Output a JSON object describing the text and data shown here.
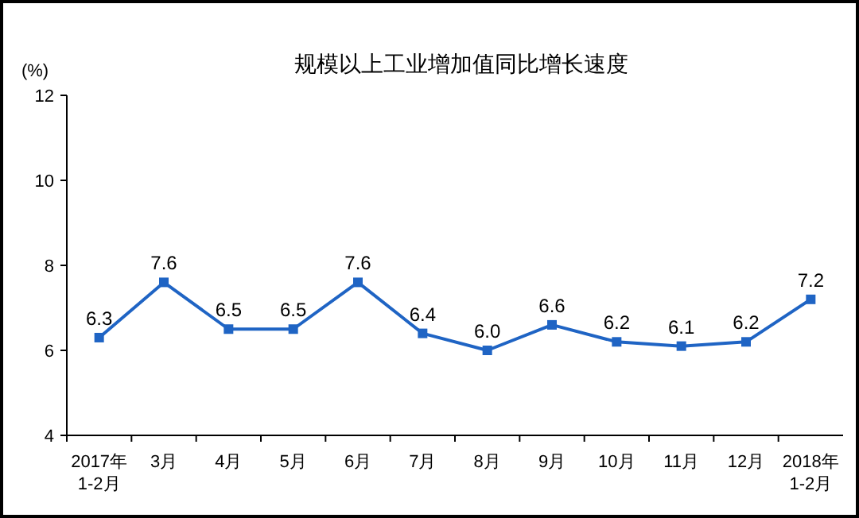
{
  "chart_data": {
    "type": "line",
    "title": "规模以上工业增加值同比增长速度",
    "ylabel": "(%)",
    "categories": [
      "2017年\n1-2月",
      "3月",
      "4月",
      "5月",
      "6月",
      "7月",
      "8月",
      "9月",
      "10月",
      "11月",
      "12月",
      "2018年\n1-2月"
    ],
    "series": [
      {
        "color": "#1f64c4",
        "values": [
          6.3,
          7.6,
          6.5,
          6.5,
          7.6,
          6.4,
          6.0,
          6.6,
          6.2,
          6.1,
          6.2,
          7.2
        ],
        "value_labels": [
          "6.3",
          "7.6",
          "6.5",
          "6.5",
          "7.6",
          "6.4",
          "6.0",
          "6.6",
          "6.2",
          "6.1",
          "6.2",
          "7.2"
        ]
      }
    ],
    "ylim": [
      4,
      12
    ],
    "yticks": [
      4,
      6,
      8,
      10,
      12
    ],
    "marker": "square",
    "grid": false
  }
}
